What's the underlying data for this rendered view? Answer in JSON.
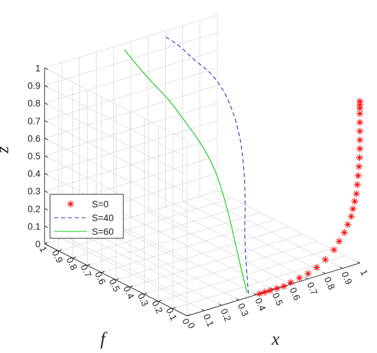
{
  "chart_data": {
    "type": "line",
    "projection": "3d",
    "xlabel": "x",
    "ylabel": "f",
    "zlabel": "z",
    "xlim": [
      0,
      1
    ],
    "ylim": [
      0,
      1
    ],
    "zlim": [
      0,
      1
    ],
    "x_ticks": [
      "0",
      "0.1",
      "0.2",
      "0.3",
      "0.4",
      "0.5",
      "0.6",
      "0.7",
      "0.8",
      "0.9",
      "1"
    ],
    "y_ticks": [
      "0",
      "0.1",
      "0.2",
      "0.3",
      "0.4",
      "0.5",
      "0.6",
      "0.7",
      "0.8",
      "0.9",
      "1"
    ],
    "z_ticks": [
      "0",
      "0.1",
      "0.2",
      "0.3",
      "0.4",
      "0.5",
      "0.6",
      "0.7",
      "0.8",
      "0.9",
      "1"
    ],
    "grid": true,
    "legend_position": "left",
    "series": [
      {
        "name": "S=0",
        "style": "markers",
        "marker": "asterisk",
        "color": "#ff0000",
        "points": [
          [
            0.42,
            0.0,
            0.0
          ],
          [
            0.45,
            0.0,
            0.0
          ],
          [
            0.48,
            0.0,
            0.0
          ],
          [
            0.52,
            0.0,
            0.0
          ],
          [
            0.56,
            0.0,
            0.0
          ],
          [
            0.6,
            0.0,
            0.01
          ],
          [
            0.65,
            0.0,
            0.02
          ],
          [
            0.7,
            0.0,
            0.03
          ],
          [
            0.75,
            0.0,
            0.05
          ],
          [
            0.8,
            0.0,
            0.08
          ],
          [
            0.85,
            0.0,
            0.12
          ],
          [
            0.88,
            0.0,
            0.16
          ],
          [
            0.91,
            0.0,
            0.2
          ],
          [
            0.93,
            0.0,
            0.24
          ],
          [
            0.95,
            0.0,
            0.28
          ],
          [
            0.96,
            0.0,
            0.32
          ],
          [
            0.97,
            0.0,
            0.36
          ],
          [
            0.98,
            0.0,
            0.4
          ],
          [
            0.985,
            0.0,
            0.45
          ],
          [
            0.99,
            0.0,
            0.5
          ],
          [
            0.995,
            0.0,
            0.55
          ],
          [
            0.998,
            0.0,
            0.6
          ],
          [
            1.0,
            0.0,
            0.65
          ],
          [
            1.0,
            0.0,
            0.7
          ],
          [
            1.0,
            0.0,
            0.75
          ],
          [
            1.0,
            0.0,
            0.8
          ],
          [
            1.0,
            0.0,
            0.85
          ],
          [
            1.0,
            0.0,
            0.88
          ],
          [
            1.0,
            0.0,
            0.9
          ],
          [
            1.0,
            0.0,
            0.92
          ]
        ]
      },
      {
        "name": "S=40",
        "style": "dashed",
        "color": "#1f2fbf",
        "points": [
          [
            0.38,
            0.03,
            0.0
          ],
          [
            0.43,
            0.1,
            0.05
          ],
          [
            0.48,
            0.17,
            0.12
          ],
          [
            0.54,
            0.25,
            0.22
          ],
          [
            0.6,
            0.32,
            0.33
          ],
          [
            0.66,
            0.4,
            0.45
          ],
          [
            0.7,
            0.47,
            0.57
          ],
          [
            0.73,
            0.55,
            0.68
          ],
          [
            0.74,
            0.63,
            0.78
          ],
          [
            0.73,
            0.71,
            0.86
          ],
          [
            0.7,
            0.8,
            0.92
          ],
          [
            0.68,
            0.88,
            0.97
          ],
          [
            0.66,
            0.96,
            1.0
          ]
        ]
      },
      {
        "name": "S=60",
        "style": "solid",
        "color": "#00cc00",
        "points": [
          [
            0.38,
            0.04,
            0.0
          ],
          [
            0.42,
            0.12,
            0.06
          ],
          [
            0.47,
            0.22,
            0.14
          ],
          [
            0.51,
            0.31,
            0.24
          ],
          [
            0.54,
            0.4,
            0.36
          ],
          [
            0.56,
            0.49,
            0.47
          ],
          [
            0.56,
            0.58,
            0.57
          ],
          [
            0.54,
            0.67,
            0.67
          ],
          [
            0.51,
            0.75,
            0.77
          ],
          [
            0.47,
            0.83,
            0.86
          ],
          [
            0.44,
            0.9,
            0.94
          ],
          [
            0.42,
            0.95,
            1.0
          ]
        ]
      }
    ]
  }
}
